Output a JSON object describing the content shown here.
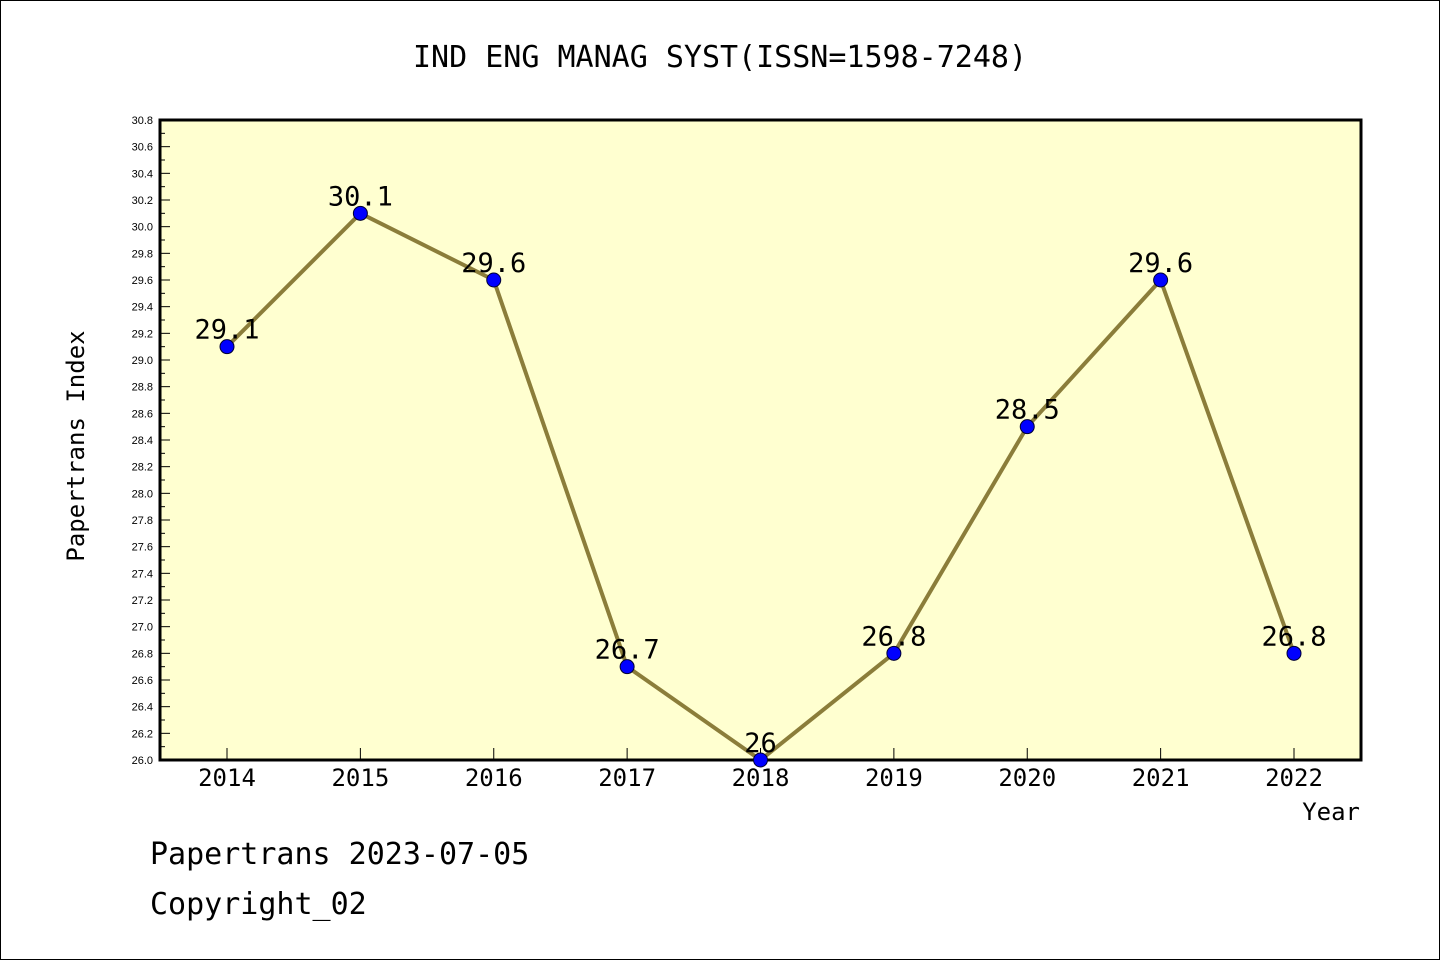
{
  "chart_data": {
    "type": "line",
    "title": "IND ENG MANAG SYST(ISSN=1598-7248)",
    "xlabel": "Year",
    "ylabel": "Papertrans Index",
    "categories": [
      "2014",
      "2015",
      "2016",
      "2017",
      "2018",
      "2019",
      "2020",
      "2021",
      "2022"
    ],
    "series": [
      {
        "values": [
          29.1,
          30.1,
          29.6,
          26.7,
          26.0,
          26.8,
          28.5,
          29.6,
          26.8
        ],
        "labels": [
          "29.1",
          "30.1",
          "29.6",
          "26.7",
          "26",
          "26.8",
          "28.5",
          "29.6",
          "26.8"
        ]
      }
    ],
    "ylim": [
      26.0,
      30.8
    ],
    "yticks": [
      "26.0",
      "26.2",
      "26.4",
      "26.6",
      "26.8",
      "27.0",
      "27.2",
      "27.4",
      "27.6",
      "27.8",
      "28.0",
      "28.2",
      "28.4",
      "28.6",
      "28.8",
      "29.0",
      "29.2",
      "29.4",
      "29.6",
      "29.8",
      "30.0",
      "30.2",
      "30.4",
      "30.6",
      "30.8"
    ],
    "grid": false,
    "legend": "none",
    "colors": {
      "plot_background": "#FFFFD0",
      "line": "#8B7D3A",
      "marker": "#0000FF"
    }
  },
  "footer": {
    "line1": "Papertrans 2023-07-05",
    "line2": "Copyright_02"
  }
}
